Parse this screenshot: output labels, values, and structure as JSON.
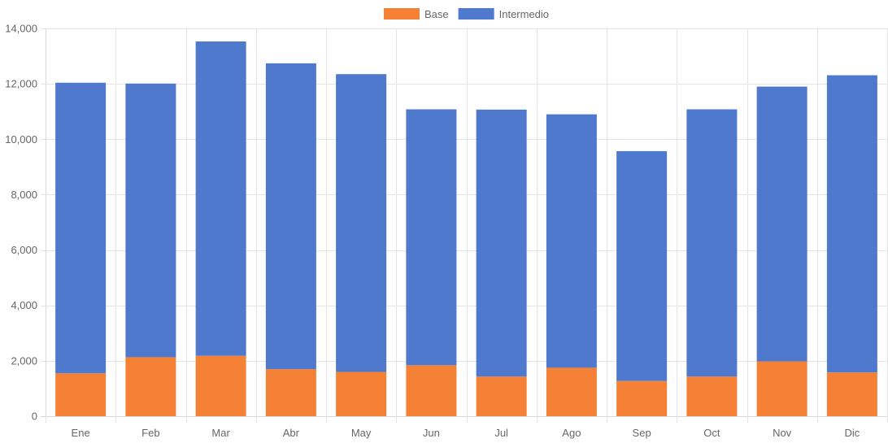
{
  "chart_data": {
    "type": "bar",
    "stacked": true,
    "categories": [
      "Ene",
      "Feb",
      "Mar",
      "Abr",
      "May",
      "Jun",
      "Jul",
      "Ago",
      "Sep",
      "Oct",
      "Nov",
      "Dic"
    ],
    "series": [
      {
        "name": "Base",
        "color": "#f58137",
        "values": [
          1550,
          2130,
          2180,
          1700,
          1600,
          1840,
          1430,
          1750,
          1270,
          1430,
          1980,
          1580
        ]
      },
      {
        "name": "Intermedio",
        "color": "#4f79cc",
        "values": [
          10490,
          9880,
          11350,
          11040,
          10750,
          9240,
          9640,
          9150,
          8300,
          9650,
          9920,
          10730
        ]
      }
    ],
    "ylim": [
      0,
      14000
    ],
    "yticks": [
      0,
      2000,
      4000,
      6000,
      8000,
      10000,
      12000,
      14000
    ],
    "ytick_labels": [
      "0",
      "2,000",
      "4,000",
      "6,000",
      "8,000",
      "10,000",
      "12,000",
      "14,000"
    ],
    "grid": true,
    "legend": "top-center"
  }
}
